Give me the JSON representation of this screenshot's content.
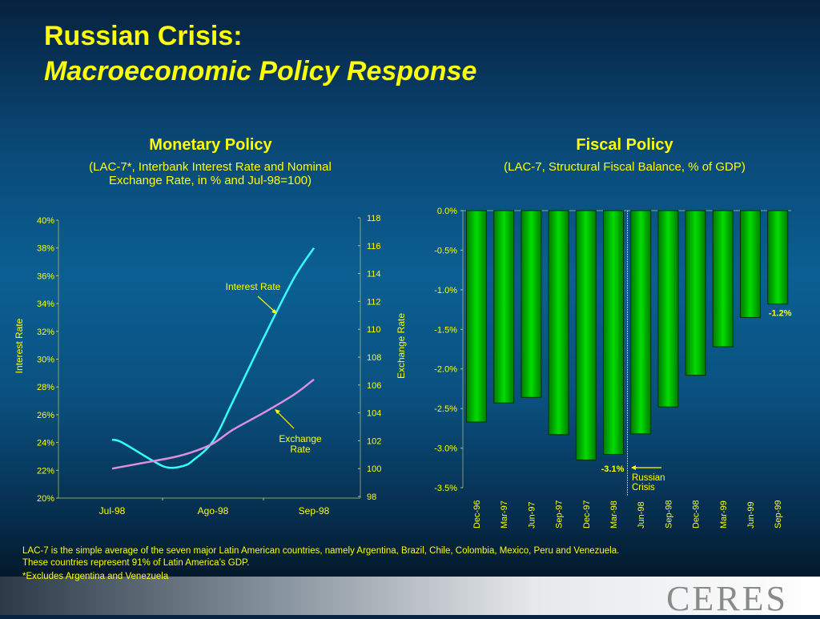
{
  "title_line1": "Russian Crisis:",
  "title_line2": "Macroeconomic Policy Response",
  "footnotes": [
    "LAC-7 is the simple average of the seven major Latin American countries, namely Argentina, Brazil, Chile, Colombia, Mexico, Peru and Venezuela.",
    "These countries represent 91% of Latin America’s GDP.",
    "*Excludes Argentina and Venezuela"
  ],
  "logo": "CERES",
  "chart_data": [
    {
      "type": "line",
      "title": "Monetary Policy",
      "subtitle": "(LAC-7*, Interbank Interest Rate and Nominal Exchange Rate, in % and Jul-98=100)",
      "categories": [
        "Jul-98",
        "Ago-98",
        "Sep-98"
      ],
      "ylabel": "Interest Rate",
      "y2label": "Exchange Rate",
      "ylim": [
        20,
        40
      ],
      "yticks": [
        "20%",
        "22%",
        "24%",
        "26%",
        "28%",
        "30%",
        "32%",
        "34%",
        "36%",
        "38%",
        "40%"
      ],
      "y2lim": [
        98,
        118
      ],
      "y2ticks": [
        "98",
        "100",
        "102",
        "104",
        "106",
        "108",
        "110",
        "112",
        "114",
        "116",
        "118"
      ],
      "series": [
        {
          "name": "Interest Rate",
          "axis": "left",
          "color": "#33ffff",
          "label": "Interest Rate",
          "x": [
            0,
            0.1,
            0.4,
            0.55,
            0.7,
            0.8,
            1.0,
            1.2,
            1.5,
            1.8,
            2.0
          ],
          "values": [
            24.2,
            24.0,
            22.7,
            22.2,
            22.3,
            22.7,
            24.1,
            27.0,
            31.5,
            35.8,
            38.0
          ]
        },
        {
          "name": "Exchange Rate",
          "axis": "right",
          "color": "#e08ee0",
          "label_lines": [
            "Exchange",
            "Rate"
          ],
          "x": [
            0,
            0.3,
            0.6,
            0.8,
            1.0,
            1.2,
            1.5,
            1.8,
            2.0
          ],
          "values": [
            100,
            100.4,
            100.8,
            101.2,
            101.8,
            102.8,
            104.0,
            105.3,
            106.4
          ]
        }
      ]
    },
    {
      "type": "bar",
      "title": "Fiscal Policy",
      "subtitle": "(LAC-7, Structural Fiscal Balance, % of GDP)",
      "categories": [
        "Dec-96",
        "Mar-97",
        "Jun-97",
        "Sep-97",
        "Dec-97",
        "Mar-98",
        "Jun-98",
        "Sep-98",
        "Dec-98",
        "Mar-99",
        "Jun-99",
        "Sep-99"
      ],
      "values": [
        -2.67,
        -2.43,
        -2.36,
        -2.83,
        -3.15,
        -3.08,
        -2.82,
        -2.48,
        -2.08,
        -1.72,
        -1.35,
        -1.18
      ],
      "ylim": [
        -3.5,
        0
      ],
      "yticks": [
        "0.0%",
        "-0.5%",
        "-1.0%",
        "-1.5%",
        "-2.0%",
        "-2.5%",
        "-3.0%",
        "-3.5%"
      ],
      "data_labels": [
        {
          "index": 5,
          "text": "-3.1%"
        },
        {
          "index": 11,
          "text": "-1.2%"
        }
      ],
      "annotation": {
        "lines": [
          "Russian",
          "Crisis"
        ],
        "after_index": 5
      },
      "bar_color": "#00dd00"
    }
  ]
}
